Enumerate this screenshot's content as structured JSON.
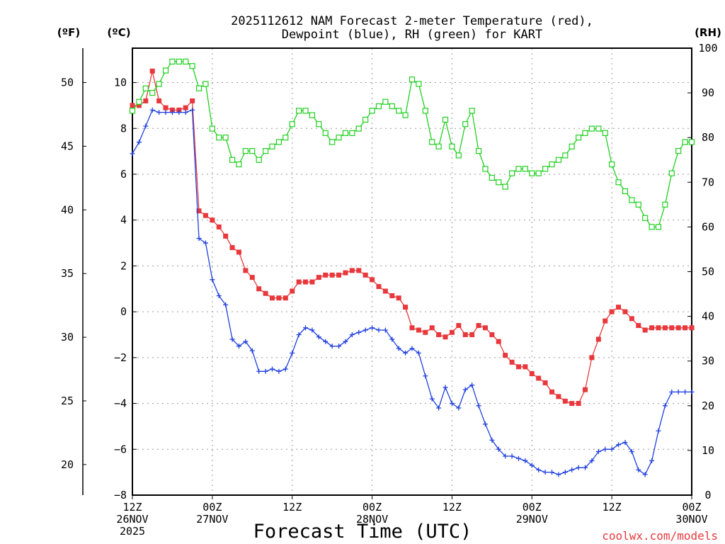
{
  "chart_data": {
    "type": "line",
    "title_line1": "2025112612 NAM Forecast 2-meter Temperature (red),",
    "title_line2": "Dewpoint (blue), RH (green) for KART",
    "xlabel": "Forecast Time (UTC)",
    "left_unit_f": "(ºF)",
    "left_unit_c": "(ºC)",
    "right_unit": "(RH)",
    "credit": "coolwx.com/models",
    "x_range_hours": [
      0,
      84
    ],
    "celsius_range": [
      -8,
      11.5
    ],
    "rh_range": [
      0,
      100
    ],
    "grid": true,
    "x_ticks": [
      {
        "hour": 0,
        "lines": [
          "12Z",
          "26NOV",
          "2025"
        ]
      },
      {
        "hour": 12,
        "lines": [
          "00Z",
          "27NOV"
        ]
      },
      {
        "hour": 24,
        "lines": [
          "12Z",
          ""
        ]
      },
      {
        "hour": 36,
        "lines": [
          "00Z",
          "28NOV"
        ]
      },
      {
        "hour": 48,
        "lines": [
          "12Z",
          ""
        ]
      },
      {
        "hour": 60,
        "lines": [
          "00Z",
          "29NOV"
        ]
      },
      {
        "hour": 72,
        "lines": [
          "12Z",
          ""
        ]
      },
      {
        "hour": 84,
        "lines": [
          "00Z",
          "30NOV"
        ]
      }
    ],
    "celsius_ticks": [
      "-8",
      "-6",
      "-4",
      "-2",
      "0",
      "2",
      "4",
      "6",
      "8",
      "10"
    ],
    "fahrenheit_ticks": [
      "20",
      "25",
      "30",
      "35",
      "40",
      "45",
      "50"
    ],
    "rh_ticks": [
      "0",
      "10",
      "20",
      "30",
      "40",
      "50",
      "60",
      "70",
      "80",
      "90",
      "100"
    ],
    "series": [
      {
        "name": "Temperature",
        "units": "C",
        "color": "#e8383c",
        "marker": "filled-square",
        "x": [
          0,
          1,
          2,
          3,
          4,
          5,
          6,
          7,
          8,
          9,
          10,
          11,
          12,
          13,
          14,
          15,
          16,
          17,
          18,
          19,
          20,
          21,
          22,
          23,
          24,
          25,
          26,
          27,
          28,
          29,
          30,
          31,
          32,
          33,
          34,
          35,
          36,
          37,
          38,
          39,
          40,
          41,
          42,
          43,
          44,
          45,
          46,
          47,
          48,
          49,
          50,
          51,
          52,
          53,
          54,
          55,
          56,
          57,
          58,
          59,
          60,
          61,
          62,
          63,
          64,
          65,
          66,
          67,
          68,
          69,
          70,
          71,
          72,
          73,
          74,
          75,
          76,
          77,
          78,
          79,
          80,
          81,
          82,
          83,
          84
        ],
        "values": [
          9.0,
          9.0,
          9.2,
          10.5,
          9.2,
          8.9,
          8.8,
          8.8,
          8.9,
          9.2,
          4.4,
          4.2,
          4.0,
          3.7,
          3.3,
          2.8,
          2.6,
          1.8,
          1.5,
          1.0,
          0.8,
          0.6,
          0.6,
          0.6,
          0.9,
          1.3,
          1.3,
          1.3,
          1.5,
          1.6,
          1.6,
          1.6,
          1.7,
          1.8,
          1.8,
          1.6,
          1.4,
          1.1,
          0.9,
          0.7,
          0.6,
          0.2,
          -0.7,
          -0.8,
          -0.9,
          -0.7,
          -1.0,
          -1.1,
          -0.9,
          -0.6,
          -1.0,
          -1.0,
          -0.6,
          -0.7,
          -1.0,
          -1.3,
          -1.9,
          -2.2,
          -2.4,
          -2.4,
          -2.7,
          -2.9,
          -3.1,
          -3.5,
          -3.7,
          -3.9,
          -4.0,
          -4.0,
          -3.4,
          -2.0,
          -1.2,
          -0.4,
          0.0,
          0.2,
          0.0,
          -0.3,
          -0.6,
          -0.8,
          -0.7,
          -0.7,
          -0.7,
          -0.7,
          -0.7,
          -0.7,
          -0.7
        ]
      },
      {
        "name": "Dewpoint",
        "units": "C",
        "color": "#2040e0",
        "marker": "plus",
        "x": [
          0,
          1,
          2,
          3,
          4,
          5,
          6,
          7,
          8,
          9,
          10,
          11,
          12,
          13,
          14,
          15,
          16,
          17,
          18,
          19,
          20,
          21,
          22,
          23,
          24,
          25,
          26,
          27,
          28,
          29,
          30,
          31,
          32,
          33,
          34,
          35,
          36,
          37,
          38,
          39,
          40,
          41,
          42,
          43,
          44,
          45,
          46,
          47,
          48,
          49,
          50,
          51,
          52,
          53,
          54,
          55,
          56,
          57,
          58,
          59,
          60,
          61,
          62,
          63,
          64,
          65,
          66,
          67,
          68,
          69,
          70,
          71,
          72,
          73,
          74,
          75,
          76,
          77,
          78,
          79,
          80,
          81,
          82,
          83,
          84
        ],
        "values": [
          6.9,
          7.4,
          8.1,
          8.8,
          8.7,
          8.7,
          8.7,
          8.7,
          8.7,
          8.8,
          3.2,
          3.0,
          1.4,
          0.7,
          0.3,
          -1.2,
          -1.5,
          -1.3,
          -1.7,
          -2.6,
          -2.6,
          -2.5,
          -2.6,
          -2.5,
          -1.8,
          -1.0,
          -0.7,
          -0.8,
          -1.1,
          -1.3,
          -1.5,
          -1.5,
          -1.3,
          -1.0,
          -0.9,
          -0.8,
          -0.7,
          -0.8,
          -0.8,
          -1.2,
          -1.6,
          -1.8,
          -1.6,
          -1.8,
          -2.8,
          -3.8,
          -4.2,
          -3.3,
          -4.0,
          -4.2,
          -3.4,
          -3.2,
          -4.1,
          -4.9,
          -5.6,
          -6.0,
          -6.3,
          -6.3,
          -6.4,
          -6.5,
          -6.7,
          -6.9,
          -7.0,
          -7.0,
          -7.1,
          -7.0,
          -6.9,
          -6.8,
          -6.8,
          -6.5,
          -6.1,
          -6.0,
          -6.0,
          -5.8,
          -5.7,
          -6.1,
          -6.9,
          -7.1,
          -6.5,
          -5.2,
          -4.1,
          -3.5,
          -3.5,
          -3.5,
          -3.5
        ]
      },
      {
        "name": "RH",
        "units": "%",
        "color": "#20d020",
        "marker": "open-square",
        "x": [
          0,
          1,
          2,
          3,
          4,
          5,
          6,
          7,
          8,
          9,
          10,
          11,
          12,
          13,
          14,
          15,
          16,
          17,
          18,
          19,
          20,
          21,
          22,
          23,
          24,
          25,
          26,
          27,
          28,
          29,
          30,
          31,
          32,
          33,
          34,
          35,
          36,
          37,
          38,
          39,
          40,
          41,
          42,
          43,
          44,
          45,
          46,
          47,
          48,
          49,
          50,
          51,
          52,
          53,
          54,
          55,
          56,
          57,
          58,
          59,
          60,
          61,
          62,
          63,
          64,
          65,
          66,
          67,
          68,
          69,
          70,
          71,
          72,
          73,
          74,
          75,
          76,
          77,
          78,
          79,
          80,
          81,
          82,
          83,
          84
        ],
        "values": [
          86,
          88,
          91,
          90,
          92,
          95,
          97,
          97,
          97,
          96,
          91,
          92,
          82,
          80,
          80,
          75,
          74,
          77,
          77,
          75,
          77,
          78,
          79,
          80,
          83,
          86,
          86,
          85,
          83,
          81,
          79,
          80,
          81,
          81,
          82,
          84,
          86,
          87,
          88,
          87,
          86,
          85,
          93,
          92,
          86,
          79,
          78,
          84,
          78,
          76,
          83,
          86,
          77,
          73,
          71,
          70,
          69,
          72,
          73,
          73,
          72,
          72,
          73,
          74,
          75,
          76,
          78,
          80,
          81,
          82,
          82,
          81,
          74,
          70,
          68,
          66,
          65,
          62,
          60,
          60,
          65,
          72,
          77,
          79,
          79
        ]
      }
    ]
  }
}
